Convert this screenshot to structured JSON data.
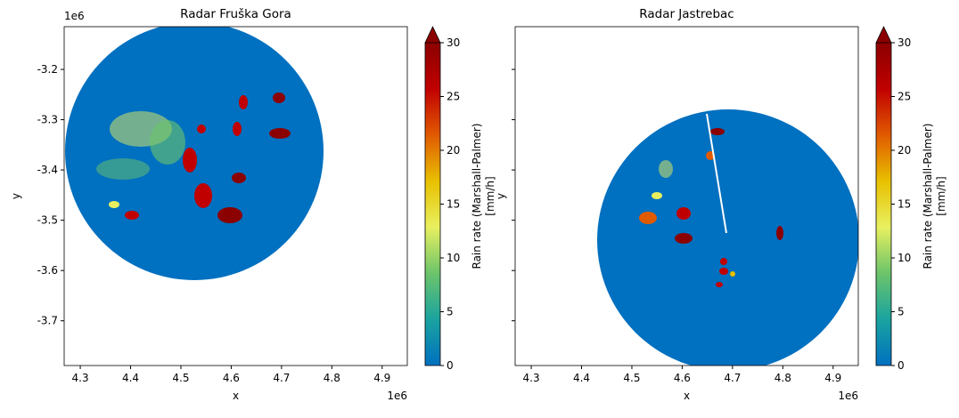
{
  "chart_data": [
    {
      "type": "image",
      "title": "Radar Fruška Gora",
      "xlabel": "x",
      "ylabel": "y",
      "x_offset_label": "1e6",
      "y_offset_label": "1e6",
      "xlim": [
        4.268,
        4.95
      ],
      "ylim": [
        -3.789,
        -3.115
      ],
      "xticks": [
        4.3,
        4.4,
        4.5,
        4.6,
        4.7,
        4.8,
        4.9
      ],
      "yticks": [
        -3.2,
        -3.3,
        -3.4,
        -3.5,
        -3.6,
        -3.7
      ],
      "colormap": [
        "#0070c0",
        "#1aa3a0",
        "#6cc46a",
        "#e8f060",
        "#e8c000",
        "#e05a00",
        "#c00000",
        "#8b0000"
      ],
      "colorbar": {
        "label": [
          "Rain rate (Marshall-Palmer)",
          "[mm/h]"
        ],
        "lim": [
          0,
          30
        ],
        "ticks": [
          0,
          5,
          10,
          15,
          20,
          25,
          30
        ],
        "extend": "max"
      }
    },
    {
      "type": "image",
      "title": "Radar Jastrebac",
      "xlabel": "x",
      "ylabel": "y",
      "x_offset_label": "1e6",
      "xlim": [
        4.268,
        4.95
      ],
      "ylim": [
        -3.789,
        -3.115
      ],
      "xticks": [
        4.3,
        4.4,
        4.5,
        4.6,
        4.7,
        4.8,
        4.9
      ],
      "yticks": [
        -3.2,
        -3.3,
        -3.4,
        -3.5,
        -3.6,
        -3.7
      ],
      "sharey": true,
      "colormap": [
        "#0070c0",
        "#1aa3a0",
        "#6cc46a",
        "#e8f060",
        "#e8c000",
        "#e05a00",
        "#c00000",
        "#8b0000"
      ],
      "colorbar": {
        "label": [
          "Rain rate (Marshall-Palmer)",
          "[mm/h]"
        ],
        "lim": [
          0,
          30
        ],
        "ticks": [
          0,
          5,
          10,
          15,
          20,
          25,
          30
        ],
        "extend": "max"
      }
    }
  ]
}
